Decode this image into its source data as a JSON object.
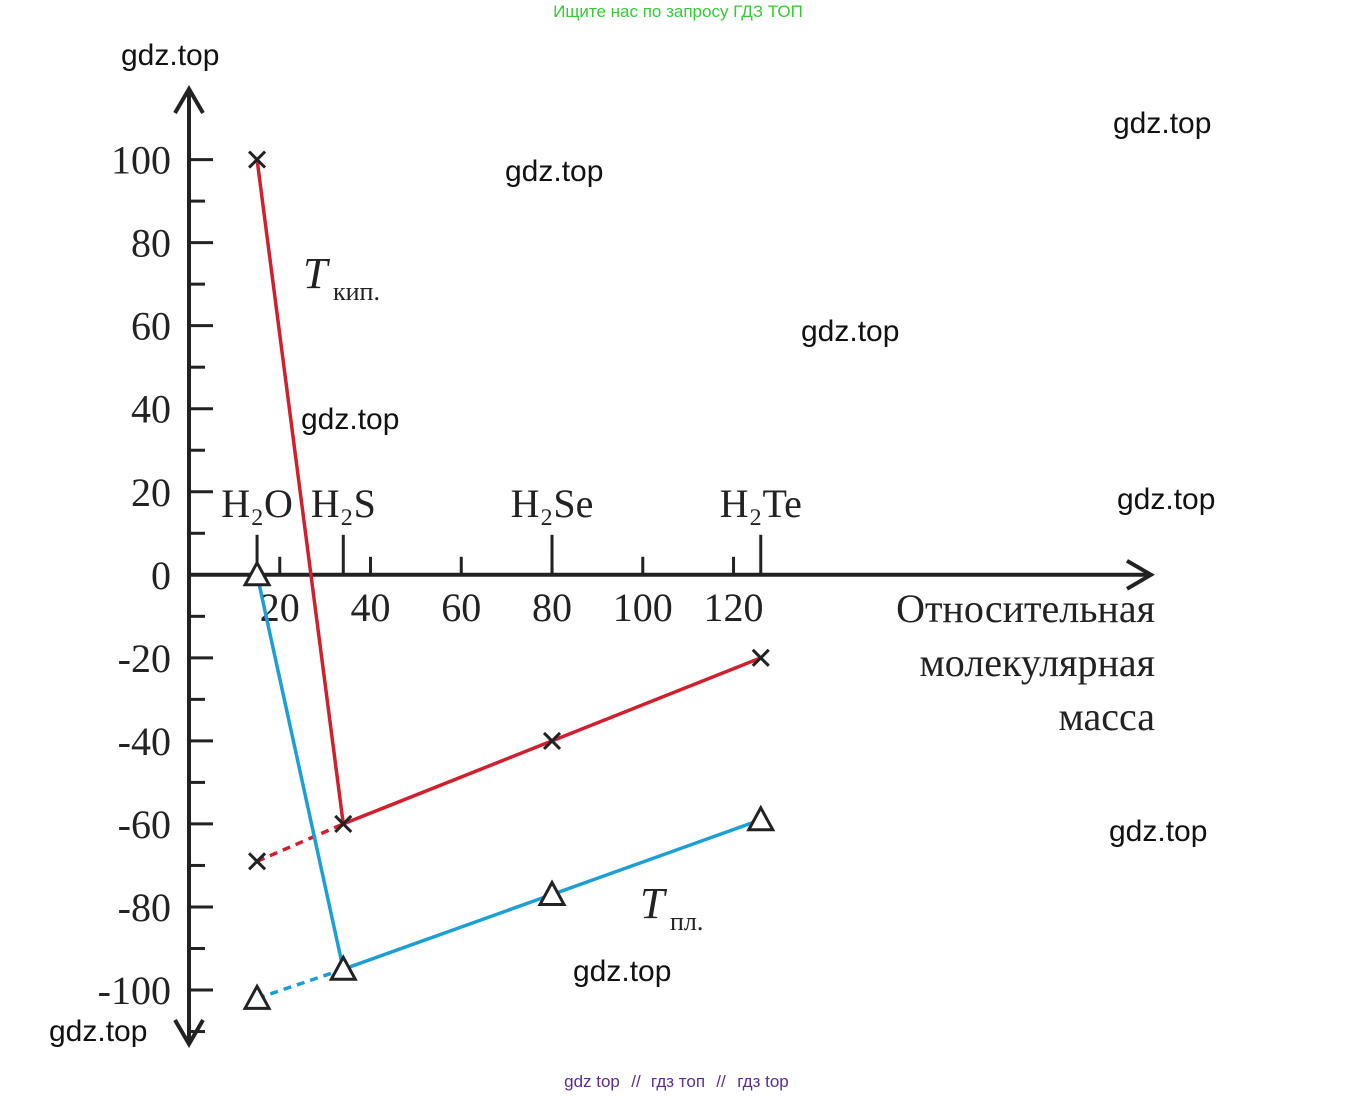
{
  "header": "Ищите нас по запросу ГДЗ ТОП",
  "watermarks": [
    "gdz.top",
    "gdz.top",
    "gdz.top",
    "gdz.top",
    "gdz.top",
    "gdz.top",
    "gdz.top",
    "gdz.top",
    "gdz.top"
  ],
  "footer": {
    "links": [
      "gdz top",
      "гдз топ",
      "гдз top"
    ],
    "separator": "//"
  },
  "chart_data": {
    "type": "line",
    "x_label": [
      "Относительная",
      "молекулярная",
      "масса"
    ],
    "categories": [
      "H₂O",
      "H₂S",
      "H₂Se",
      "H₂Te"
    ],
    "x": [
      15,
      34,
      80,
      126
    ],
    "series": [
      {
        "name": "T",
        "name_sub": "кип.",
        "color": "#d0202e",
        "marker": "cross",
        "values": [
          100,
          -60,
          -40,
          -20
        ],
        "extrapolated_first": -69
      },
      {
        "name": "T",
        "name_sub": "пл.",
        "color": "#1c9fd4",
        "marker": "triangle",
        "values": [
          0,
          -95,
          -77,
          -59
        ],
        "extrapolated_first": -102
      }
    ],
    "xlim": [
      0,
      212
    ],
    "ylim": [
      -113,
      117
    ],
    "xticks": [
      20,
      40,
      60,
      80,
      100,
      120
    ],
    "yticks": [
      -100,
      -80,
      -60,
      -40,
      -20,
      0,
      20,
      40,
      60,
      80,
      100
    ],
    "yminor": [
      -110,
      -90,
      -70,
      -50,
      -30,
      -10,
      10,
      30,
      50,
      70,
      90
    ]
  }
}
